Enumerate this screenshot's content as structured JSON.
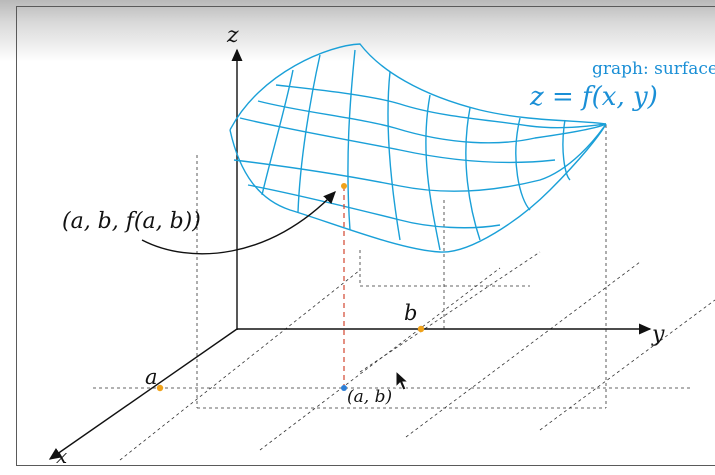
{
  "labels": {
    "z_axis": "z",
    "y_axis": "y",
    "x_axis": "x",
    "point_a": "a",
    "point_b": "b",
    "point_ab": "(a, b)",
    "surface_point": "(a, b, f(a, b))",
    "equation": "z = f(x, y)",
    "caption": "graph: surface"
  },
  "colors": {
    "surface": "#1aa0d8",
    "axis": "#111111",
    "guide": "#333333",
    "vertical": "#d2452f",
    "point_orange": "#f0a21a",
    "point_blue": "#2e7fd6",
    "equation": "#1a8fd6"
  },
  "icons": {
    "cursor": "mouse-pointer-icon"
  }
}
